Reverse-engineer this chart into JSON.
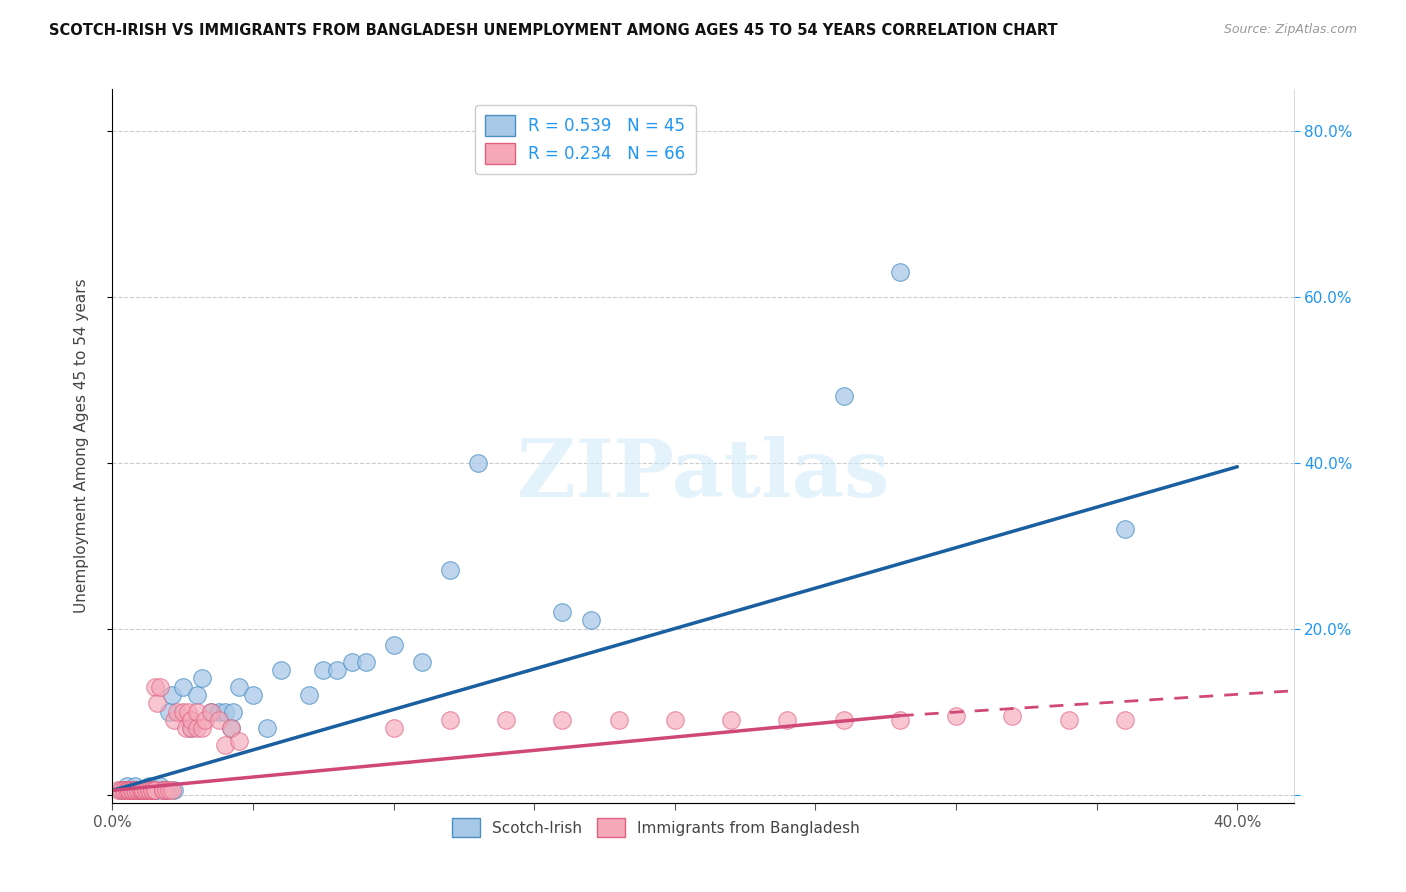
{
  "title": "SCOTCH-IRISH VS IMMIGRANTS FROM BANGLADESH UNEMPLOYMENT AMONG AGES 45 TO 54 YEARS CORRELATION CHART",
  "source": "Source: ZipAtlas.com",
  "ylabel": "Unemployment Among Ages 45 to 54 years",
  "xlim": [
    0.0,
    0.42
  ],
  "ylim": [
    -0.01,
    0.85
  ],
  "xticks": [
    0.0,
    0.05,
    0.1,
    0.15,
    0.2,
    0.25,
    0.3,
    0.35,
    0.4
  ],
  "yticks": [
    0.0,
    0.2,
    0.4,
    0.6,
    0.8
  ],
  "ytick_right_labels": [
    "",
    "20.0%",
    "40.0%",
    "60.0%",
    "80.0%"
  ],
  "xtick_labels": [
    "0.0%",
    "",
    "",
    "",
    "",
    "",
    "",
    "",
    "40.0%"
  ],
  "legend_r1": "R = 0.539",
  "legend_n1": "N = 45",
  "legend_r2": "R = 0.234",
  "legend_n2": "N = 66",
  "watermark": "ZIPatlas",
  "blue_color": "#a8c8e8",
  "pink_color": "#f4a8b8",
  "blue_edge_color": "#4a90c4",
  "pink_edge_color": "#e06080",
  "blue_line_color": "#1a5fa0",
  "pink_line_color": "#d04878",
  "blue_line": {
    "x0": 0.0,
    "y0": 0.005,
    "x1": 0.4,
    "y1": 0.395
  },
  "pink_line_solid": {
    "x0": 0.0,
    "y0": 0.005,
    "x1": 0.28,
    "y1": 0.095
  },
  "pink_line_dashed": {
    "x0": 0.28,
    "y0": 0.095,
    "x1": 0.42,
    "y1": 0.125
  },
  "blue_scatter": [
    [
      0.003,
      0.005
    ],
    [
      0.005,
      0.01
    ],
    [
      0.007,
      0.005
    ],
    [
      0.008,
      0.01
    ],
    [
      0.009,
      0.005
    ],
    [
      0.01,
      0.005
    ],
    [
      0.011,
      0.005
    ],
    [
      0.012,
      0.005
    ],
    [
      0.013,
      0.01
    ],
    [
      0.014,
      0.005
    ],
    [
      0.015,
      0.005
    ],
    [
      0.016,
      0.005
    ],
    [
      0.017,
      0.01
    ],
    [
      0.018,
      0.005
    ],
    [
      0.019,
      0.005
    ],
    [
      0.02,
      0.1
    ],
    [
      0.021,
      0.12
    ],
    [
      0.022,
      0.005
    ],
    [
      0.025,
      0.13
    ],
    [
      0.028,
      0.08
    ],
    [
      0.03,
      0.12
    ],
    [
      0.032,
      0.14
    ],
    [
      0.035,
      0.1
    ],
    [
      0.038,
      0.1
    ],
    [
      0.04,
      0.1
    ],
    [
      0.042,
      0.08
    ],
    [
      0.043,
      0.1
    ],
    [
      0.045,
      0.13
    ],
    [
      0.05,
      0.12
    ],
    [
      0.055,
      0.08
    ],
    [
      0.06,
      0.15
    ],
    [
      0.07,
      0.12
    ],
    [
      0.075,
      0.15
    ],
    [
      0.08,
      0.15
    ],
    [
      0.085,
      0.16
    ],
    [
      0.09,
      0.16
    ],
    [
      0.1,
      0.18
    ],
    [
      0.11,
      0.16
    ],
    [
      0.12,
      0.27
    ],
    [
      0.13,
      0.4
    ],
    [
      0.16,
      0.22
    ],
    [
      0.17,
      0.21
    ],
    [
      0.26,
      0.48
    ],
    [
      0.28,
      0.63
    ],
    [
      0.36,
      0.32
    ]
  ],
  "pink_scatter": [
    [
      0.002,
      0.005
    ],
    [
      0.003,
      0.005
    ],
    [
      0.004,
      0.005
    ],
    [
      0.004,
      0.005
    ],
    [
      0.005,
      0.005
    ],
    [
      0.005,
      0.005
    ],
    [
      0.006,
      0.005
    ],
    [
      0.006,
      0.005
    ],
    [
      0.007,
      0.005
    ],
    [
      0.007,
      0.005
    ],
    [
      0.007,
      0.005
    ],
    [
      0.008,
      0.005
    ],
    [
      0.008,
      0.005
    ],
    [
      0.009,
      0.005
    ],
    [
      0.009,
      0.005
    ],
    [
      0.01,
      0.005
    ],
    [
      0.01,
      0.005
    ],
    [
      0.01,
      0.005
    ],
    [
      0.011,
      0.005
    ],
    [
      0.011,
      0.005
    ],
    [
      0.012,
      0.005
    ],
    [
      0.012,
      0.005
    ],
    [
      0.013,
      0.005
    ],
    [
      0.013,
      0.005
    ],
    [
      0.014,
      0.005
    ],
    [
      0.014,
      0.005
    ],
    [
      0.015,
      0.005
    ],
    [
      0.015,
      0.005
    ],
    [
      0.015,
      0.13
    ],
    [
      0.016,
      0.11
    ],
    [
      0.017,
      0.13
    ],
    [
      0.018,
      0.005
    ],
    [
      0.018,
      0.005
    ],
    [
      0.019,
      0.005
    ],
    [
      0.02,
      0.005
    ],
    [
      0.021,
      0.005
    ],
    [
      0.022,
      0.09
    ],
    [
      0.023,
      0.1
    ],
    [
      0.025,
      0.1
    ],
    [
      0.026,
      0.08
    ],
    [
      0.027,
      0.1
    ],
    [
      0.028,
      0.08
    ],
    [
      0.028,
      0.09
    ],
    [
      0.03,
      0.1
    ],
    [
      0.03,
      0.08
    ],
    [
      0.032,
      0.08
    ],
    [
      0.033,
      0.09
    ],
    [
      0.035,
      0.1
    ],
    [
      0.038,
      0.09
    ],
    [
      0.04,
      0.06
    ],
    [
      0.042,
      0.08
    ],
    [
      0.045,
      0.065
    ],
    [
      0.1,
      0.08
    ],
    [
      0.12,
      0.09
    ],
    [
      0.14,
      0.09
    ],
    [
      0.16,
      0.09
    ],
    [
      0.18,
      0.09
    ],
    [
      0.2,
      0.09
    ],
    [
      0.22,
      0.09
    ],
    [
      0.24,
      0.09
    ],
    [
      0.26,
      0.09
    ],
    [
      0.28,
      0.09
    ],
    [
      0.3,
      0.095
    ],
    [
      0.32,
      0.095
    ],
    [
      0.34,
      0.09
    ],
    [
      0.36,
      0.09
    ]
  ]
}
